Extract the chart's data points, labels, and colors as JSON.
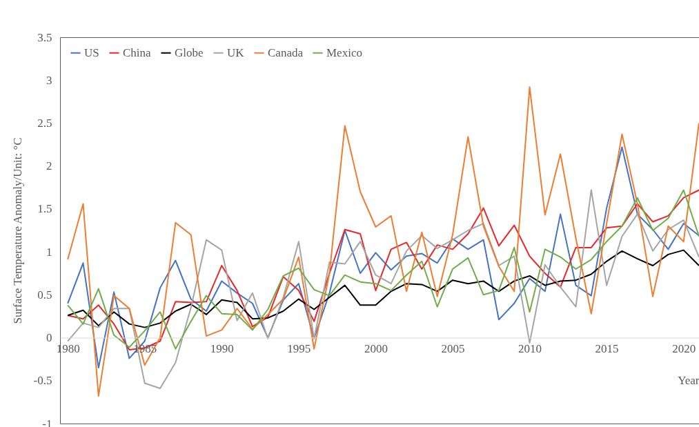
{
  "chart_data": {
    "type": "line",
    "xlabel": "Year",
    "ylabel": "Surface Temperature Anomaly/Unit: °C",
    "x": [
      1980,
      1981,
      1982,
      1983,
      1984,
      1985,
      1986,
      1987,
      1988,
      1989,
      1990,
      1991,
      1992,
      1993,
      1994,
      1995,
      1996,
      1997,
      1998,
      1999,
      2000,
      2001,
      2002,
      2003,
      2004,
      2005,
      2006,
      2007,
      2008,
      2009,
      2010,
      2011,
      2012,
      2013,
      2014,
      2015,
      2016,
      2017,
      2018,
      2019,
      2020,
      2021
    ],
    "series": [
      {
        "name": "US",
        "color": "#4472c4",
        "values": [
          0.4,
          0.87,
          -0.35,
          0.53,
          -0.24,
          -0.04,
          0.58,
          0.9,
          0.45,
          0.31,
          0.66,
          0.52,
          0.4,
          0.0,
          0.44,
          0.63,
          -0.01,
          0.52,
          1.25,
          0.75,
          0.99,
          0.79,
          0.95,
          0.98,
          0.87,
          1.15,
          1.03,
          1.14,
          0.21,
          0.4,
          0.69,
          0.54,
          1.44,
          0.61,
          0.49,
          1.51,
          2.22,
          1.44,
          1.26,
          1.03,
          1.33,
          1.19
        ]
      },
      {
        "name": "China",
        "color": "#e8262a",
        "values": [
          0.26,
          0.22,
          0.38,
          0.16,
          -0.14,
          -0.12,
          -0.04,
          0.42,
          0.41,
          0.42,
          0.84,
          0.55,
          0.13,
          0.24,
          0.71,
          0.55,
          0.19,
          0.75,
          1.26,
          1.21,
          0.55,
          1.03,
          1.11,
          0.8,
          1.08,
          1.03,
          1.21,
          1.51,
          1.07,
          1.31,
          0.95,
          0.75,
          0.59,
          1.05,
          1.05,
          1.28,
          1.3,
          1.56,
          1.35,
          1.42,
          1.63,
          1.72
        ]
      },
      {
        "name": "Globe",
        "color": "#000000",
        "values": [
          0.26,
          0.32,
          0.14,
          0.3,
          0.16,
          0.12,
          0.17,
          0.31,
          0.39,
          0.27,
          0.44,
          0.41,
          0.22,
          0.23,
          0.31,
          0.45,
          0.33,
          0.47,
          0.61,
          0.38,
          0.38,
          0.54,
          0.63,
          0.62,
          0.54,
          0.67,
          0.63,
          0.66,
          0.54,
          0.66,
          0.72,
          0.61,
          0.66,
          0.67,
          0.74,
          0.89,
          1.01,
          0.92,
          0.84,
          0.97,
          1.02,
          0.84
        ]
      },
      {
        "name": "UK",
        "color": "#a5a5a5",
        "values": [
          -0.04,
          0.17,
          0.12,
          0.34,
          0.34,
          -0.53,
          -0.59,
          -0.29,
          0.35,
          1.14,
          1.02,
          0.2,
          0.52,
          -0.01,
          0.47,
          1.12,
          -0.01,
          0.88,
          0.86,
          1.12,
          0.73,
          0.63,
          1.01,
          1.19,
          1.04,
          1.14,
          1.25,
          1.33,
          0.84,
          0.95,
          -0.06,
          0.85,
          0.59,
          0.36,
          1.72,
          0.61,
          1.18,
          1.44,
          1.01,
          1.26,
          1.37,
          0.94
        ]
      },
      {
        "name": "Canada",
        "color": "#ed7d31",
        "values": [
          0.91,
          1.56,
          -0.68,
          0.49,
          0.34,
          -0.32,
          0.0,
          1.34,
          1.2,
          0.02,
          0.09,
          0.34,
          0.1,
          0.27,
          0.45,
          0.94,
          -0.13,
          0.75,
          2.47,
          1.7,
          1.29,
          1.42,
          0.54,
          1.23,
          0.48,
          1.2,
          2.34,
          1.3,
          0.83,
          0.54,
          2.92,
          1.43,
          2.14,
          1.16,
          0.28,
          1.33,
          2.37,
          1.56,
          0.48,
          1.3,
          1.12,
          2.5
        ]
      },
      {
        "name": "Mexico",
        "color": "#70ad47",
        "values": [
          0.38,
          0.16,
          0.57,
          0.03,
          -0.11,
          0.08,
          0.3,
          -0.13,
          0.19,
          0.49,
          0.28,
          0.27,
          0.09,
          0.33,
          0.72,
          0.81,
          0.56,
          0.49,
          0.73,
          0.65,
          0.63,
          0.55,
          0.73,
          0.89,
          0.36,
          0.8,
          0.93,
          0.5,
          0.55,
          1.05,
          0.3,
          1.03,
          0.94,
          0.8,
          0.91,
          1.12,
          1.3,
          1.63,
          1.25,
          1.39,
          1.72,
          1.18
        ]
      }
    ],
    "xlim": [
      1979.5,
      2021
    ],
    "xticks": [
      1980,
      1985,
      1990,
      1995,
      2000,
      2005,
      2010,
      2015,
      2020
    ],
    "ylim": [
      -1,
      3.5
    ],
    "yticks": [
      -1,
      -0.5,
      0,
      0.5,
      1,
      1.5,
      2,
      2.5,
      3,
      3.5
    ],
    "grid": false,
    "legend": "top left",
    "line_style": "solid",
    "marker": "none"
  }
}
